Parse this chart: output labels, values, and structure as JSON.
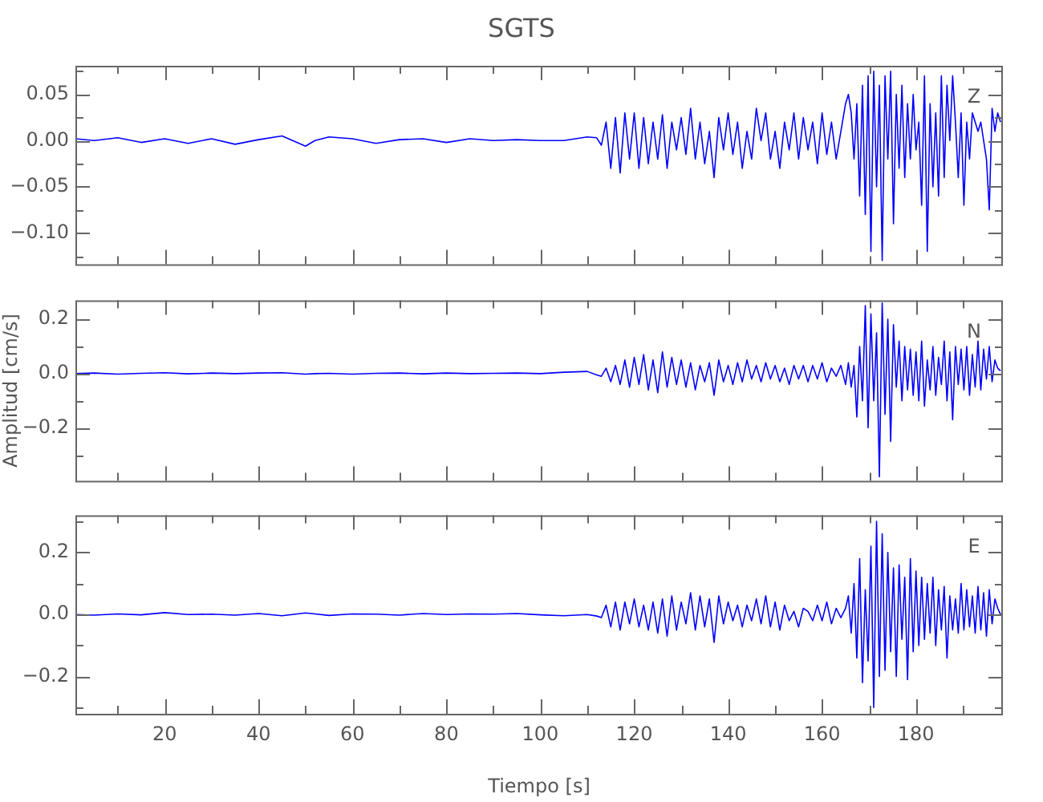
{
  "chart_data": [
    {
      "type": "line",
      "title": "SGTS",
      "annotations": [
        "Z"
      ],
      "tick_labels": "y",
      "xlim": [
        1,
        198.5
      ],
      "xticks": [
        {
          "value": 10,
          "label": null
        },
        20,
        {
          "value": 30,
          "label": null
        },
        40,
        {
          "value": 50,
          "label": null
        },
        60,
        {
          "value": 70,
          "label": null
        },
        80,
        {
          "value": 90,
          "label": null
        },
        100,
        {
          "value": 110,
          "label": null
        },
        120,
        {
          "value": 130,
          "label": null
        },
        140,
        {
          "value": 150,
          "label": null
        },
        160,
        {
          "value": 170,
          "label": null
        },
        180,
        {
          "value": 190,
          "label": null
        }
      ],
      "ylim": [
        -0.134,
        0.081
      ],
      "yticks": [
        {
          "value": -0.125,
          "label": null
        },
        {
          "value": -0.1,
          "label": "−0.10"
        },
        {
          "value": -0.075,
          "label": null
        },
        {
          "value": -0.05,
          "label": "−0.05"
        },
        {
          "value": -0.025,
          "label": null
        },
        {
          "value": 0,
          "label": "0.00"
        },
        {
          "value": 0.025,
          "label": null
        },
        {
          "value": 0.05,
          "label": "0.05"
        },
        {
          "value": 0.075,
          "label": null
        }
      ],
      "x": [
        1,
        5,
        10,
        15,
        20,
        25,
        30,
        35,
        40,
        45,
        50,
        52,
        55,
        60,
        65,
        70,
        75,
        80,
        85,
        90,
        95,
        100,
        105,
        110,
        112,
        113,
        114,
        115,
        116,
        117,
        118,
        119,
        120,
        121,
        122,
        123,
        124,
        125,
        126,
        127,
        128,
        129,
        130,
        131,
        132,
        133,
        134,
        135,
        136,
        137,
        138,
        139,
        140,
        141,
        142,
        143,
        144,
        145,
        146,
        147,
        148,
        149,
        150,
        151,
        152,
        153,
        154,
        155,
        156,
        157,
        158,
        159,
        160,
        161,
        162,
        163,
        164,
        165,
        165.6,
        166.2,
        166.8,
        167.4,
        168,
        168.6,
        169.2,
        169.8,
        170.4,
        171,
        171.6,
        172.2,
        172.8,
        173.4,
        174,
        174.6,
        175.2,
        175.8,
        176.4,
        177,
        177.6,
        178.2,
        178.8,
        179.4,
        180,
        180.6,
        181.2,
        181.8,
        182.4,
        183,
        183.6,
        184.2,
        184.8,
        185.4,
        186,
        186.6,
        187.2,
        187.8,
        188.4,
        189,
        189.6,
        190.2,
        190.8,
        191.4,
        192,
        192.6,
        193.2,
        193.8,
        194.4,
        195,
        195.6,
        196.2,
        196.8,
        197.4,
        198
      ],
      "series": [
        {
          "color": "#0000ff",
          "values": [
            0.002,
            0,
            0.003,
            -0.002,
            0.002,
            -0.003,
            0.002,
            -0.004,
            0.001,
            0.005,
            -0.006,
            0,
            0.004,
            0.002,
            -0.003,
            0.001,
            0.002,
            -0.002,
            0.002,
            0,
            0.001,
            0,
            0,
            0.004,
            0.003,
            -0.005,
            0.02,
            -0.03,
            0.025,
            -0.035,
            0.03,
            -0.02,
            0.03,
            -0.03,
            0.025,
            -0.025,
            0.02,
            -0.02,
            0.028,
            -0.03,
            0.02,
            -0.01,
            0.025,
            -0.015,
            0.035,
            -0.02,
            0.02,
            -0.025,
            0.01,
            -0.04,
            0.025,
            -0.01,
            0.03,
            -0.015,
            0.02,
            -0.03,
            0.01,
            -0.02,
            0.035,
            0,
            0.03,
            -0.02,
            0.01,
            -0.03,
            0.02,
            -0.01,
            0.03,
            -0.02,
            0.025,
            -0.01,
            0.02,
            -0.025,
            0.03,
            -0.015,
            0.02,
            -0.02,
            0.01,
            0.04,
            0.05,
            0.03,
            -0.02,
            0.04,
            -0.06,
            0.06,
            -0.08,
            0.07,
            -0.12,
            0.075,
            -0.05,
            0.06,
            -0.13,
            0.07,
            -0.02,
            0.075,
            -0.09,
            0.05,
            -0.03,
            0.06,
            -0.04,
            0.04,
            -0.02,
            0.05,
            -0.01,
            0.02,
            -0.07,
            0.07,
            -0.12,
            0.04,
            -0.05,
            0.03,
            -0.06,
            0.07,
            -0.04,
            0.06,
            0,
            0.07,
            0.02,
            -0.04,
            0.03,
            -0.07,
            0.02,
            -0.02,
            0.03,
            0.02,
            0.01,
            0.02,
            0,
            -0.02,
            -0.075,
            0.035,
            0.01,
            0.03,
            0.02
          ]
        }
      ]
    },
    {
      "type": "line",
      "ylabel": "Amplitud [cm/s]",
      "annotations": [
        "N"
      ],
      "tick_labels": "y",
      "xlim": [
        1,
        198.5
      ],
      "xticks": [
        {
          "value": 10,
          "label": null
        },
        20,
        {
          "value": 30,
          "label": null
        },
        40,
        {
          "value": 50,
          "label": null
        },
        60,
        {
          "value": 70,
          "label": null
        },
        80,
        {
          "value": 90,
          "label": null
        },
        100,
        {
          "value": 110,
          "label": null
        },
        120,
        {
          "value": 130,
          "label": null
        },
        140,
        {
          "value": 150,
          "label": null
        },
        160,
        {
          "value": 170,
          "label": null
        },
        180,
        {
          "value": 190,
          "label": null
        }
      ],
      "ylim": [
        -0.395,
        0.27
      ],
      "yticks": [
        {
          "value": -0.3,
          "label": null
        },
        {
          "value": -0.2,
          "label": "−0.2"
        },
        {
          "value": -0.1,
          "label": null
        },
        {
          "value": 0,
          "label": "0.0"
        },
        {
          "value": 0.1,
          "label": null
        },
        0.2
      ],
      "x": [
        1,
        5,
        10,
        15,
        20,
        25,
        30,
        35,
        40,
        45,
        50,
        52,
        55,
        60,
        65,
        70,
        75,
        80,
        85,
        90,
        95,
        100,
        105,
        110,
        112,
        113,
        114,
        115,
        116,
        117,
        118,
        119,
        120,
        121,
        122,
        123,
        124,
        125,
        126,
        127,
        128,
        129,
        130,
        131,
        132,
        133,
        134,
        135,
        136,
        137,
        138,
        139,
        140,
        141,
        142,
        143,
        144,
        145,
        146,
        147,
        148,
        149,
        150,
        151,
        152,
        153,
        154,
        155,
        156,
        157,
        158,
        159,
        160,
        161,
        162,
        163,
        164,
        165,
        165.6,
        166.2,
        166.8,
        167.4,
        168,
        168.6,
        169.2,
        169.8,
        170.4,
        171,
        171.6,
        172.2,
        172.8,
        173.4,
        174,
        174.6,
        175.2,
        175.8,
        176.4,
        177,
        177.6,
        178.2,
        178.8,
        179.4,
        180,
        180.6,
        181.2,
        181.8,
        182.4,
        183,
        183.6,
        184.2,
        184.8,
        185.4,
        186,
        186.6,
        187.2,
        187.8,
        188.4,
        189,
        189.6,
        190.2,
        190.8,
        191.4,
        192,
        192.6,
        193.2,
        193.8,
        194.4,
        195,
        195.6,
        196.2,
        196.8,
        197.4,
        198
      ],
      "series": [
        {
          "color": "#0000ff",
          "values": [
            0,
            0.002,
            -0.002,
            0.001,
            0.003,
            -0.001,
            0.002,
            0,
            0.002,
            0.003,
            -0.002,
            0,
            0.001,
            -0.002,
            0.001,
            0.002,
            -0.001,
            0.002,
            0,
            0.001,
            0.002,
            0,
            0.005,
            0.008,
            -0.005,
            -0.01,
            0.02,
            -0.03,
            0.03,
            -0.04,
            0.05,
            -0.05,
            0.06,
            -0.04,
            0.07,
            -0.06,
            0.05,
            -0.07,
            0.08,
            -0.05,
            0.06,
            -0.04,
            0.05,
            -0.05,
            0.04,
            -0.06,
            0.03,
            -0.03,
            0.04,
            -0.08,
            0.05,
            -0.03,
            0.03,
            -0.04,
            0.04,
            -0.03,
            0.05,
            -0.02,
            0.03,
            -0.03,
            0.04,
            -0.02,
            0.03,
            -0.03,
            0.02,
            -0.04,
            0.03,
            -0.02,
            0.03,
            -0.03,
            0.03,
            -0.02,
            0.04,
            -0.03,
            0.02,
            -0.01,
            0.03,
            -0.04,
            0.04,
            -0.05,
            0.03,
            -0.16,
            0.1,
            -0.1,
            0.25,
            -0.2,
            0.22,
            -0.1,
            0.15,
            -0.38,
            0.26,
            -0.15,
            0.2,
            -0.25,
            0.18,
            -0.05,
            0.12,
            -0.1,
            0.1,
            -0.06,
            0.09,
            -0.08,
            0.08,
            -0.1,
            0.12,
            -0.12,
            0.05,
            -0.06,
            0.1,
            -0.08,
            0.06,
            -0.04,
            0.12,
            -0.1,
            0.08,
            -0.17,
            0.1,
            -0.04,
            0.09,
            -0.06,
            0.1,
            -0.08,
            0.07,
            -0.05,
            0.12,
            -0.06,
            0.09,
            -0.02,
            0.1,
            -0.03,
            0.05,
            0.02,
            0.01
          ]
        }
      ]
    },
    {
      "type": "line",
      "xlabel": "Tiempo [s]",
      "annotations": [
        "E"
      ],
      "xlim": [
        1,
        198.5
      ],
      "xticks": [
        {
          "value": 10,
          "label": null
        },
        20,
        {
          "value": 30,
          "label": null
        },
        40,
        {
          "value": 50,
          "label": null
        },
        60,
        {
          "value": 70,
          "label": null
        },
        80,
        {
          "value": 90,
          "label": null
        },
        100,
        {
          "value": 110,
          "label": null
        },
        120,
        {
          "value": 130,
          "label": null
        },
        140,
        {
          "value": 150,
          "label": null
        },
        160,
        {
          "value": 170,
          "label": null
        },
        180,
        {
          "value": 190,
          "label": null
        }
      ],
      "ylim": [
        -0.32,
        0.32
      ],
      "yticks": [
        {
          "value": -0.3,
          "label": null
        },
        {
          "value": -0.2,
          "label": "−0.2"
        },
        {
          "value": -0.1,
          "label": null
        },
        {
          "value": 0,
          "label": "0.0"
        },
        {
          "value": 0.1,
          "label": null
        },
        0.2,
        {
          "value": 0.3,
          "label": null
        }
      ],
      "x": [
        1,
        5,
        10,
        15,
        20,
        25,
        30,
        35,
        40,
        45,
        50,
        52,
        55,
        60,
        65,
        70,
        75,
        80,
        85,
        90,
        95,
        100,
        105,
        110,
        112,
        113,
        114,
        115,
        116,
        117,
        118,
        119,
        120,
        121,
        122,
        123,
        124,
        125,
        126,
        127,
        128,
        129,
        130,
        131,
        132,
        133,
        134,
        135,
        136,
        137,
        138,
        139,
        140,
        141,
        142,
        143,
        144,
        145,
        146,
        147,
        148,
        149,
        150,
        151,
        152,
        153,
        154,
        155,
        156,
        157,
        158,
        159,
        160,
        161,
        162,
        163,
        164,
        165,
        165.6,
        166.2,
        166.8,
        167.4,
        168,
        168.6,
        169.2,
        169.8,
        170.4,
        171,
        171.6,
        172.2,
        172.8,
        173.4,
        174,
        174.6,
        175.2,
        175.8,
        176.4,
        177,
        177.6,
        178.2,
        178.8,
        179.4,
        180,
        180.6,
        181.2,
        181.8,
        182.4,
        183,
        183.6,
        184.2,
        184.8,
        185.4,
        186,
        186.6,
        187.2,
        187.8,
        188.4,
        189,
        189.6,
        190.2,
        190.8,
        191.4,
        192,
        192.6,
        193.2,
        193.8,
        194.4,
        195,
        195.6,
        196.2,
        196.8,
        197.4,
        198
      ],
      "series": [
        {
          "color": "#0000ff",
          "values": [
            0,
            -0.002,
            0.002,
            -0.001,
            0.006,
            0,
            0.001,
            -0.002,
            0.003,
            -0.004,
            0.005,
            0.002,
            -0.003,
            0.002,
            0.001,
            -0.002,
            0.003,
            0,
            0.002,
            0.001,
            0.003,
            -0.001,
            -0.004,
            0,
            -0.005,
            -0.01,
            0.03,
            -0.04,
            0.04,
            -0.05,
            0.04,
            -0.03,
            0.05,
            -0.04,
            0.03,
            -0.05,
            0.04,
            -0.06,
            0.05,
            -0.07,
            0.06,
            -0.05,
            0.04,
            -0.03,
            0.07,
            -0.05,
            0.06,
            -0.04,
            0.05,
            -0.09,
            0.06,
            -0.03,
            0.04,
            -0.02,
            0.03,
            -0.04,
            0.03,
            -0.02,
            0.05,
            -0.03,
            0.06,
            -0.04,
            0.04,
            -0.05,
            0.03,
            -0.02,
            0.01,
            -0.04,
            0.02,
            0.01,
            -0.02,
            0.03,
            -0.02,
            0.04,
            -0.03,
            0.02,
            -0.01,
            0.02,
            0.06,
            -0.06,
            0.1,
            -0.14,
            0.18,
            -0.22,
            0.08,
            -0.15,
            0.22,
            -0.3,
            0.3,
            -0.2,
            0.26,
            -0.18,
            0.2,
            -0.12,
            0.15,
            -0.2,
            0.16,
            -0.08,
            0.12,
            -0.21,
            0.18,
            -0.12,
            0.14,
            -0.1,
            0.12,
            -0.08,
            0.1,
            -0.06,
            0.12,
            -0.1,
            0.08,
            -0.05,
            0.09,
            -0.14,
            0.06,
            -0.05,
            0.05,
            -0.06,
            0.1,
            -0.05,
            0.08,
            -0.04,
            0.06,
            -0.06,
            0.09,
            -0.05,
            0.07,
            -0.07,
            0.08,
            -0.03,
            0.05,
            0.02,
            0
          ]
        }
      ]
    }
  ]
}
